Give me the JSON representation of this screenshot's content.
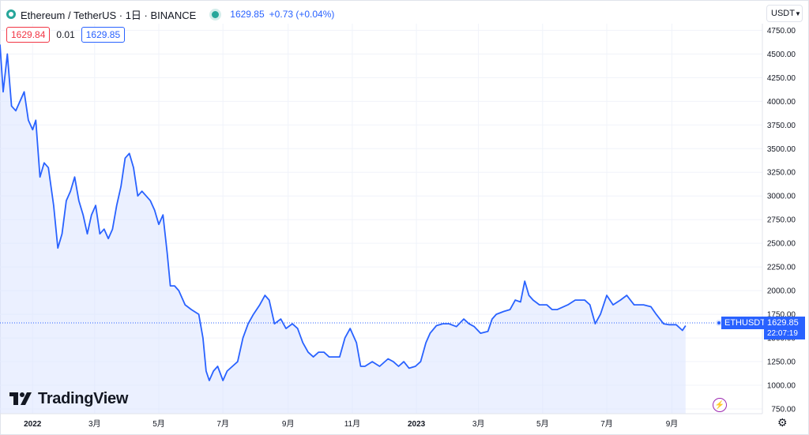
{
  "header": {
    "title": "Ethereum / TetherUS · 1日 · BINANCE",
    "price": "1629.85",
    "change": "+0.73 (+0.04%)"
  },
  "quote": {
    "bid": "1629.84",
    "spread": "0.01",
    "ask": "1629.85"
  },
  "currency": {
    "label": "USDT"
  },
  "watermark": {
    "brand": "TradingView"
  },
  "price_tag": {
    "symbol": "ETHUSDT",
    "price": "1629.85",
    "countdown": "22:07:19"
  },
  "colors": {
    "line": "#2962ff",
    "fill": "#dbe4ff",
    "accent_green": "#26a69a",
    "bid": "#f23645"
  },
  "chart_data": {
    "type": "area",
    "title": "",
    "xlabel": "",
    "ylabel": "",
    "x_tick_labels": [
      "2022",
      "3月",
      "5月",
      "7月",
      "9月",
      "11月",
      "2023",
      "3月",
      "5月",
      "7月",
      "9月"
    ],
    "y_ticks": [
      750,
      1000,
      1250,
      1500,
      1750,
      2000,
      2250,
      2500,
      2750,
      3000,
      3250,
      3500,
      3750,
      4000,
      4250,
      4500,
      4750
    ],
    "ylim": [
      700,
      4820
    ],
    "xlim": [
      "2021-12-01",
      "2023-11-26"
    ],
    "grid": true,
    "series": [
      {
        "name": "ETHUSDT",
        "x": [
          "2021-12-01",
          "2021-12-04",
          "2021-12-08",
          "2021-12-12",
          "2021-12-16",
          "2021-12-20",
          "2021-12-24",
          "2021-12-28",
          "2022-01-01",
          "2022-01-04",
          "2022-01-08",
          "2022-01-12",
          "2022-01-16",
          "2022-01-21",
          "2022-01-25",
          "2022-01-29",
          "2022-02-02",
          "2022-02-06",
          "2022-02-10",
          "2022-02-14",
          "2022-02-18",
          "2022-02-22",
          "2022-02-26",
          "2022-03-02",
          "2022-03-06",
          "2022-03-10",
          "2022-03-14",
          "2022-03-18",
          "2022-03-22",
          "2022-03-26",
          "2022-03-30",
          "2022-04-03",
          "2022-04-07",
          "2022-04-11",
          "2022-04-15",
          "2022-04-19",
          "2022-04-23",
          "2022-04-27",
          "2022-05-01",
          "2022-05-05",
          "2022-05-09",
          "2022-05-12",
          "2022-05-16",
          "2022-05-20",
          "2022-05-26",
          "2022-06-01",
          "2022-06-08",
          "2022-06-12",
          "2022-06-15",
          "2022-06-18",
          "2022-06-22",
          "2022-06-26",
          "2022-07-01",
          "2022-07-05",
          "2022-07-10",
          "2022-07-15",
          "2022-07-20",
          "2022-07-25",
          "2022-07-30",
          "2022-08-05",
          "2022-08-10",
          "2022-08-14",
          "2022-08-19",
          "2022-08-25",
          "2022-08-30",
          "2022-09-05",
          "2022-09-10",
          "2022-09-15",
          "2022-09-20",
          "2022-09-25",
          "2022-09-30",
          "2022-10-05",
          "2022-10-10",
          "2022-10-15",
          "2022-10-20",
          "2022-10-25",
          "2022-10-30",
          "2022-11-05",
          "2022-11-09",
          "2022-11-13",
          "2022-11-20",
          "2022-11-27",
          "2022-12-05",
          "2022-12-10",
          "2022-12-15",
          "2022-12-20",
          "2022-12-25",
          "2022-12-31",
          "2023-01-05",
          "2023-01-10",
          "2023-01-14",
          "2023-01-20",
          "2023-01-26",
          "2023-02-01",
          "2023-02-08",
          "2023-02-15",
          "2023-02-20",
          "2023-02-25",
          "2023-03-03",
          "2023-03-10",
          "2023-03-14",
          "2023-03-18",
          "2023-03-25",
          "2023-03-31",
          "2023-04-05",
          "2023-04-10",
          "2023-04-14",
          "2023-04-18",
          "2023-04-22",
          "2023-04-28",
          "2023-05-05",
          "2023-05-10",
          "2023-05-15",
          "2023-05-25",
          "2023-06-01",
          "2023-06-10",
          "2023-06-15",
          "2023-06-20",
          "2023-06-25",
          "2023-07-01",
          "2023-07-07",
          "2023-07-14",
          "2023-07-20",
          "2023-07-27",
          "2023-08-05",
          "2023-08-12",
          "2023-08-17",
          "2023-08-24",
          "2023-08-29",
          "2023-09-05",
          "2023-09-11",
          "2023-09-14"
        ],
        "values": [
          4600,
          4100,
          4500,
          3950,
          3900,
          4000,
          4100,
          3800,
          3700,
          3800,
          3200,
          3350,
          3300,
          2900,
          2450,
          2600,
          2950,
          3050,
          3200,
          2950,
          2800,
          2600,
          2800,
          2900,
          2600,
          2650,
          2550,
          2650,
          2900,
          3100,
          3400,
          3450,
          3300,
          3000,
          3050,
          3000,
          2950,
          2850,
          2700,
          2800,
          2400,
          2050,
          2050,
          2000,
          1850,
          1800,
          1750,
          1500,
          1150,
          1050,
          1150,
          1200,
          1050,
          1150,
          1200,
          1250,
          1500,
          1650,
          1750,
          1850,
          1950,
          1900,
          1650,
          1700,
          1600,
          1650,
          1600,
          1450,
          1350,
          1300,
          1350,
          1350,
          1300,
          1300,
          1300,
          1500,
          1600,
          1450,
          1200,
          1200,
          1250,
          1200,
          1280,
          1250,
          1200,
          1250,
          1180,
          1200,
          1250,
          1450,
          1550,
          1630,
          1650,
          1650,
          1620,
          1700,
          1650,
          1620,
          1550,
          1570,
          1700,
          1750,
          1780,
          1800,
          1900,
          1880,
          2100,
          1950,
          1900,
          1850,
          1850,
          1800,
          1800,
          1850,
          1900,
          1900,
          1850,
          1650,
          1750,
          1950,
          1850,
          1900,
          1950,
          1850,
          1850,
          1830,
          1750,
          1650,
          1640,
          1640,
          1580,
          1630
        ]
      }
    ]
  }
}
